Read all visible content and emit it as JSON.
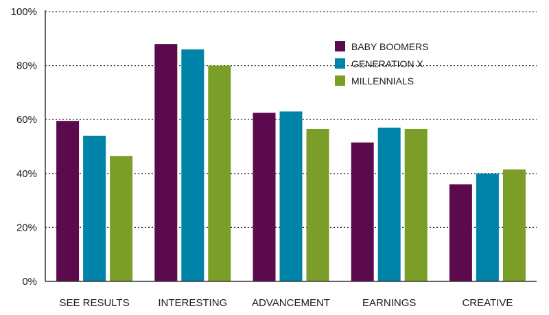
{
  "chart_data": {
    "type": "bar",
    "categories": [
      "SEE RESULTS",
      "INTERESTING",
      "ADVANCEMENT",
      "EARNINGS",
      "CREATIVE"
    ],
    "series": [
      {
        "name": "BABY BOOMERS",
        "color": "#5c0a4e",
        "values": [
          59.5,
          88,
          62.5,
          51.5,
          36
        ]
      },
      {
        "name": "GENERATION X",
        "color": "#0083a8",
        "values": [
          54,
          86,
          63,
          57,
          40
        ]
      },
      {
        "name": "MILLENNIALS",
        "color": "#7a9e28",
        "values": [
          46.5,
          80,
          56.5,
          56.5,
          41.5
        ]
      }
    ],
    "y_ticks": [
      "0%",
      "20%",
      "40%",
      "60%",
      "80%",
      "100%"
    ],
    "ylim": [
      0,
      100
    ],
    "grid": true,
    "legend_position": "top-right"
  }
}
